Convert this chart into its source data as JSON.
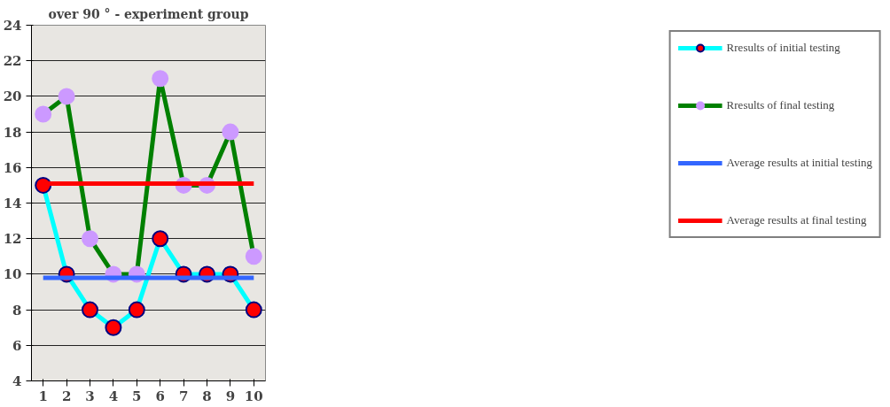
{
  "chart_data": {
    "type": "line",
    "title": "over 90 ° - experiment group",
    "categories": [
      "1",
      "2",
      "3",
      "4",
      "5",
      "6",
      "7",
      "8",
      "9",
      "10"
    ],
    "series": [
      {
        "name": "Rresults of initial testing",
        "color": "#00ffff",
        "marker": "circle",
        "colors": [
          "#ff0000",
          "#ff0000",
          "#ff0000",
          "#ff0000",
          "#ff0000",
          "#ff0000",
          "#ff0000",
          "#ff0000",
          "#ff0000",
          "#ff0000"
        ],
        "values": [
          15,
          10,
          8,
          7,
          8,
          12,
          10,
          10,
          10,
          8
        ]
      },
      {
        "name": "Rresults of final testing",
        "color": "#008000",
        "marker": "circle",
        "colors": [
          "#cc99ff",
          "#cc99ff",
          "#cc99ff",
          "#cc99ff",
          "#cc99ff",
          "#cc99ff",
          "#cc99ff",
          "#cc99ff",
          "#cc99ff",
          "#cc99ff"
        ],
        "values": [
          19,
          20,
          12,
          10,
          10,
          21,
          15,
          15,
          18,
          11
        ]
      },
      {
        "name": "Average results at initial testing",
        "color": "#3366ff",
        "marker": "none",
        "values": [
          9.8,
          9.8,
          9.8,
          9.8,
          9.8,
          9.8,
          9.8,
          9.8,
          9.8,
          9.8
        ]
      },
      {
        "name": "Average results at final testing",
        "color": "#ff0000",
        "marker": "none",
        "values": [
          15.1,
          15.1,
          15.1,
          15.1,
          15.1,
          15.1,
          15.1,
          15.1,
          15.1,
          15.1
        ]
      }
    ],
    "ylim": [
      4,
      24
    ],
    "yticks": [
      4,
      6,
      8,
      10,
      12,
      14,
      16,
      18,
      20,
      22,
      24
    ],
    "grid": "y",
    "legend": "right",
    "line_style": "solid"
  }
}
